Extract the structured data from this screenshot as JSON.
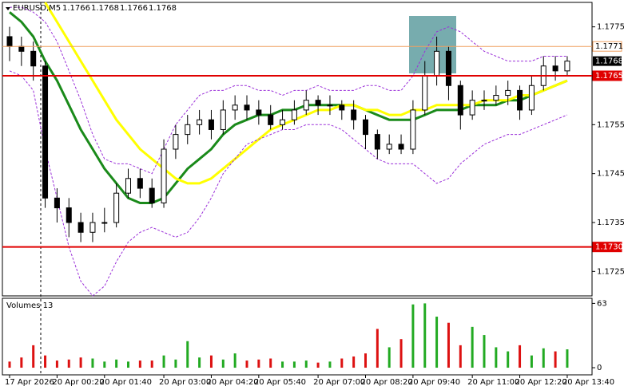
{
  "chart_data": [
    {
      "type": "candlestick",
      "symbol": "EURUSD,M5",
      "ohlc": [
        1.1766,
        1.1768,
        1.1766,
        1.1768
      ],
      "categories": [
        "17 Apr 2026",
        null,
        null,
        null,
        "20 Apr 00:20",
        null,
        null,
        null,
        "20 Apr 01:40",
        null,
        null,
        null,
        null,
        "20 Apr 03:00",
        null,
        null,
        null,
        "20 Apr 04:20",
        null,
        null,
        null,
        "20 Apr 05:40",
        null,
        null,
        null,
        null,
        "20 Apr 07:00",
        null,
        null,
        null,
        "20 Apr 08:20",
        null,
        null,
        null,
        "20 Apr 09:40",
        null,
        null,
        null,
        null,
        "20 Apr 11:00",
        null,
        null,
        null,
        "20 Apr 12:20",
        null,
        null,
        null,
        "20 Apr 13:40"
      ],
      "open": [
        1.1773,
        1.1771,
        1.177,
        1.1767,
        1.174,
        1.1738,
        1.1735,
        1.1733,
        1.1735,
        1.1735,
        1.1741,
        1.1744,
        1.1742,
        1.1739,
        1.175,
        1.1753,
        1.1755,
        1.1756,
        1.1754,
        1.1758,
        1.1759,
        1.1758,
        1.1757,
        1.1755,
        1.1756,
        1.1758,
        1.176,
        1.1759,
        1.1759,
        1.1758,
        1.1756,
        1.1753,
        1.175,
        1.1751,
        1.175,
        1.1758,
        1.1765,
        1.177,
        1.1763,
        1.1757,
        1.176,
        1.176,
        1.1761,
        1.1762,
        1.1758,
        1.1763,
        1.1767,
        1.1766
      ],
      "high": [
        1.1775,
        1.1773,
        1.1772,
        1.1768,
        1.1742,
        1.174,
        1.1737,
        1.1737,
        1.1738,
        1.1743,
        1.1746,
        1.1746,
        1.1744,
        1.1752,
        1.1755,
        1.1757,
        1.1758,
        1.1758,
        1.176,
        1.1761,
        1.1761,
        1.176,
        1.1759,
        1.1758,
        1.176,
        1.1762,
        1.1761,
        1.1761,
        1.176,
        1.176,
        1.1757,
        1.1754,
        1.1753,
        1.1753,
        1.176,
        1.1768,
        1.1773,
        1.1771,
        1.1764,
        1.1762,
        1.1762,
        1.1763,
        1.1764,
        1.1763,
        1.1765,
        1.1769,
        1.1769,
        1.1769
      ],
      "low": [
        1.1768,
        1.1767,
        1.1764,
        1.1738,
        1.1735,
        1.1732,
        1.1731,
        1.1731,
        1.1733,
        1.1734,
        1.174,
        1.174,
        1.1738,
        1.1738,
        1.1748,
        1.1751,
        1.1753,
        1.1752,
        1.1753,
        1.1756,
        1.1756,
        1.1755,
        1.1754,
        1.1754,
        1.1755,
        1.1757,
        1.1757,
        1.1757,
        1.1756,
        1.1754,
        1.175,
        1.1748,
        1.1749,
        1.1749,
        1.1749,
        1.1757,
        1.1763,
        1.176,
        1.1754,
        1.1756,
        1.1758,
        1.1759,
        1.1759,
        1.1756,
        1.1757,
        1.1762,
        1.1764,
        1.1765
      ],
      "close": [
        1.1771,
        1.177,
        1.1767,
        1.174,
        1.1738,
        1.1735,
        1.1733,
        1.1735,
        1.1735,
        1.1741,
        1.1744,
        1.1742,
        1.1739,
        1.175,
        1.1753,
        1.1755,
        1.1756,
        1.1754,
        1.1758,
        1.1759,
        1.1758,
        1.1757,
        1.1755,
        1.1756,
        1.1758,
        1.176,
        1.1759,
        1.1759,
        1.1758,
        1.1756,
        1.1753,
        1.175,
        1.1751,
        1.175,
        1.1758,
        1.1765,
        1.177,
        1.1763,
        1.1757,
        1.176,
        1.176,
        1.1761,
        1.1762,
        1.1758,
        1.1763,
        1.1767,
        1.1766,
        1.1768
      ],
      "series": [
        {
          "color": "#1a8a1a",
          "width": 3,
          "values": [
            1.1778,
            1.1776,
            1.1773,
            1.1768,
            1.1764,
            1.1759,
            1.1754,
            1.175,
            1.1746,
            1.1743,
            1.174,
            1.1739,
            1.1739,
            1.174,
            1.1743,
            1.1746,
            1.1748,
            1.175,
            1.1753,
            1.1755,
            1.1756,
            1.1757,
            1.1757,
            1.1758,
            1.1758,
            1.1759,
            1.1759,
            1.1759,
            1.1759,
            1.1759,
            1.1758,
            1.1757,
            1.1756,
            1.1756,
            1.1756,
            1.1757,
            1.1758,
            1.1758,
            1.1758,
            1.1759,
            1.1759,
            1.1759,
            1.176,
            1.176,
            1.1761,
            1.1762,
            1.1763,
            1.1764
          ]
        },
        {
          "color": "#ffff00",
          "width": 3,
          "values": [
            null,
            null,
            null,
            1.178,
            1.1776,
            1.1772,
            1.1768,
            1.1764,
            1.176,
            1.1756,
            1.1753,
            1.175,
            1.1748,
            1.1746,
            1.1744,
            1.1743,
            1.1743,
            1.1744,
            1.1746,
            1.1748,
            1.175,
            1.1752,
            1.1754,
            1.1755,
            1.1756,
            1.1757,
            1.1758,
            1.1758,
            1.1759,
            1.1759,
            1.1758,
            1.1758,
            1.1757,
            1.1757,
            1.1758,
            1.1758,
            1.1759,
            1.1759,
            1.1759,
            1.1759,
            1.176,
            1.176,
            1.176,
            1.1761,
            1.1761,
            1.1762,
            1.1763,
            1.1764
          ]
        },
        {
          "color": "#9b30d9",
          "width": 1,
          "style": "dashed",
          "values": [
            1.1779,
            1.1779,
            1.1778,
            1.1776,
            1.1772,
            1.1766,
            1.176,
            1.1753,
            1.1748,
            1.1747,
            1.1747,
            1.1746,
            1.1745,
            1.175,
            1.1755,
            1.1758,
            1.1761,
            1.1762,
            1.1762,
            1.1763,
            1.1763,
            1.1762,
            1.1762,
            1.1761,
            1.1762,
            1.1762,
            1.1763,
            1.1762,
            1.1762,
            1.1762,
            1.1763,
            1.1763,
            1.1762,
            1.1762,
            1.1765,
            1.177,
            1.1774,
            1.1775,
            1.1774,
            1.1772,
            1.177,
            1.1769,
            1.1768,
            1.1768,
            1.1768,
            1.1769,
            1.1769,
            1.1769
          ]
        },
        {
          "color": "#9b30d9",
          "width": 1,
          "style": "dashed",
          "values": [
            1.1766,
            1.1765,
            1.1762,
            1.175,
            1.174,
            1.173,
            1.1723,
            1.172,
            1.1722,
            1.1727,
            1.1731,
            1.1733,
            1.1734,
            1.1733,
            1.1732,
            1.1733,
            1.1736,
            1.174,
            1.1745,
            1.1748,
            1.1751,
            1.1752,
            1.1753,
            1.1754,
            1.1754,
            1.1755,
            1.1755,
            1.1755,
            1.1754,
            1.1752,
            1.175,
            1.1748,
            1.1747,
            1.1747,
            1.1747,
            1.1745,
            1.1743,
            1.1744,
            1.1747,
            1.1749,
            1.1751,
            1.1752,
            1.1753,
            1.1753,
            1.1754,
            1.1755,
            1.1756,
            1.1757
          ]
        }
      ],
      "levels": [
        {
          "value": 1.1771,
          "color": "#f0a060",
          "label_color": "#000",
          "label_bg": "#fff"
        },
        {
          "value": 1.1765,
          "color": "#e00000",
          "label_color": "#fff",
          "label_bg": "#e00000"
        },
        {
          "value": {
            "value": 1.173,
            "label": "1.1730"
          },
          "color": "#e00000",
          "label_color": "#fff",
          "label_bg": "#e00000"
        }
      ],
      "last_price": 1.1768,
      "ylim": [
        1.172,
        1.178
      ],
      "yticks": [
        1.1775,
        1.1755,
        1.1745,
        1.1735,
        1.1725
      ]
    },
    {
      "type": "bar",
      "title": "Volumes 13",
      "values": [
        6,
        10,
        22,
        12,
        7,
        8,
        10,
        9,
        6,
        8,
        6,
        7,
        7,
        12,
        8,
        26,
        10,
        12,
        8,
        14,
        7,
        8,
        9,
        6,
        6,
        7,
        5,
        6,
        9,
        11,
        14,
        38,
        20,
        28,
        62,
        63,
        50,
        44,
        22,
        40,
        32,
        20,
        16,
        22,
        12,
        19,
        16,
        18
      ],
      "up_color": "#22aa22",
      "down_color": "#dd1111",
      "ylim": [
        -7,
        68
      ],
      "yticks": [
        63,
        0
      ]
    }
  ]
}
